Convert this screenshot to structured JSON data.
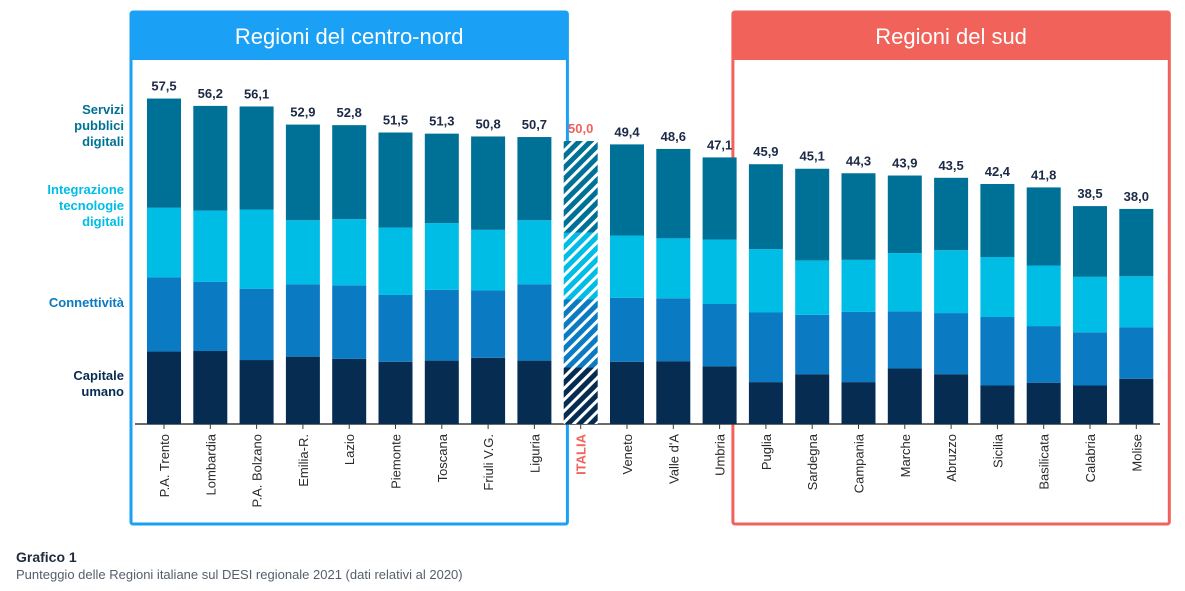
{
  "chart_data": {
    "type": "bar",
    "stacked": true,
    "categories": [
      "P.A. Trento",
      "Lombardia",
      "P.A. Bolzano",
      "Emilia-R.",
      "Lazio",
      "Piemonte",
      "Toscana",
      "Friuli V.G.",
      "Liguria",
      "ITALIA",
      "Veneto",
      "Valle d'A",
      "Umbria",
      "Puglia",
      "Sardegna",
      "Campania",
      "Marche",
      "Abruzzo",
      "Sicilia",
      "Basilicata",
      "Calabria",
      "Molise"
    ],
    "totals": [
      57.5,
      56.2,
      56.1,
      52.9,
      52.8,
      51.5,
      51.3,
      50.8,
      50.7,
      50.0,
      49.4,
      48.6,
      47.1,
      45.9,
      45.1,
      44.3,
      43.9,
      43.5,
      42.4,
      41.8,
      38.5,
      38.0
    ],
    "total_labels": [
      "57,5",
      "56,2",
      "56,1",
      "52,9",
      "52,8",
      "51,5",
      "51,3",
      "50,8",
      "50,7",
      "50,0",
      "49,4",
      "48,6",
      "47,1",
      "45,9",
      "45,1",
      "44,3",
      "43,9",
      "43,5",
      "42,4",
      "41,8",
      "38,5",
      "38,0"
    ],
    "series": [
      {
        "name": "Capitale umano",
        "color": "#062c52",
        "values": [
          12.8,
          12.9,
          11.3,
          11.9,
          11.5,
          11.0,
          11.2,
          11.7,
          11.2,
          10.0,
          11.0,
          11.1,
          10.2,
          7.4,
          8.8,
          7.4,
          9.8,
          8.8,
          6.8,
          7.3,
          6.8,
          8.0
        ]
      },
      {
        "name": "Connettività",
        "color": "#0a7ac2",
        "values": [
          13.1,
          12.2,
          12.6,
          12.8,
          13.0,
          11.8,
          12.5,
          11.9,
          13.5,
          12.0,
          11.3,
          11.1,
          11.0,
          12.3,
          10.5,
          12.4,
          10.1,
          10.8,
          12.1,
          10.0,
          9.4,
          9.1
        ]
      },
      {
        "name": "Integrazione tecnologie digitali",
        "color": "#00bde6",
        "values": [
          12.3,
          12.6,
          14.0,
          11.3,
          11.7,
          11.9,
          11.8,
          10.7,
          11.3,
          11.8,
          11.0,
          10.6,
          11.4,
          11.2,
          9.6,
          9.2,
          10.3,
          11.1,
          10.6,
          10.7,
          9.8,
          9.0
        ]
      },
      {
        "name": "Servizi pubblici digitali",
        "color": "#007196",
        "values": [
          19.3,
          18.5,
          18.2,
          16.9,
          16.6,
          16.8,
          15.8,
          16.5,
          14.7,
          16.2,
          16.1,
          15.8,
          14.5,
          15.0,
          16.2,
          15.3,
          13.7,
          12.8,
          12.9,
          13.8,
          12.5,
          11.9
        ]
      }
    ],
    "legend": [
      {
        "label": "Servizi pubblici digitali",
        "color": "#007196"
      },
      {
        "label": "Integrazione tecnologie digitali",
        "color": "#00bde6"
      },
      {
        "label": "Connettività",
        "color": "#0a7ac2"
      },
      {
        "label": "Capitale umano",
        "color": "#062c52"
      }
    ],
    "highlight_category": "ITALIA",
    "highlight_color": "#f0625a",
    "groups": [
      {
        "title": "Regioni del centro-nord",
        "color": "#1aa0f5",
        "from": 0,
        "to": 8
      },
      {
        "title": "Regioni del sud",
        "color": "#f0625a",
        "from": 13,
        "to": 21
      }
    ],
    "ylim": [
      0,
      60
    ],
    "xlabel": "",
    "ylabel": ""
  },
  "caption": {
    "title": "Grafico 1",
    "subtitle": "Punteggio delle Regioni italiane sul DESI regionale 2021 (dati relativi al 2020)"
  }
}
